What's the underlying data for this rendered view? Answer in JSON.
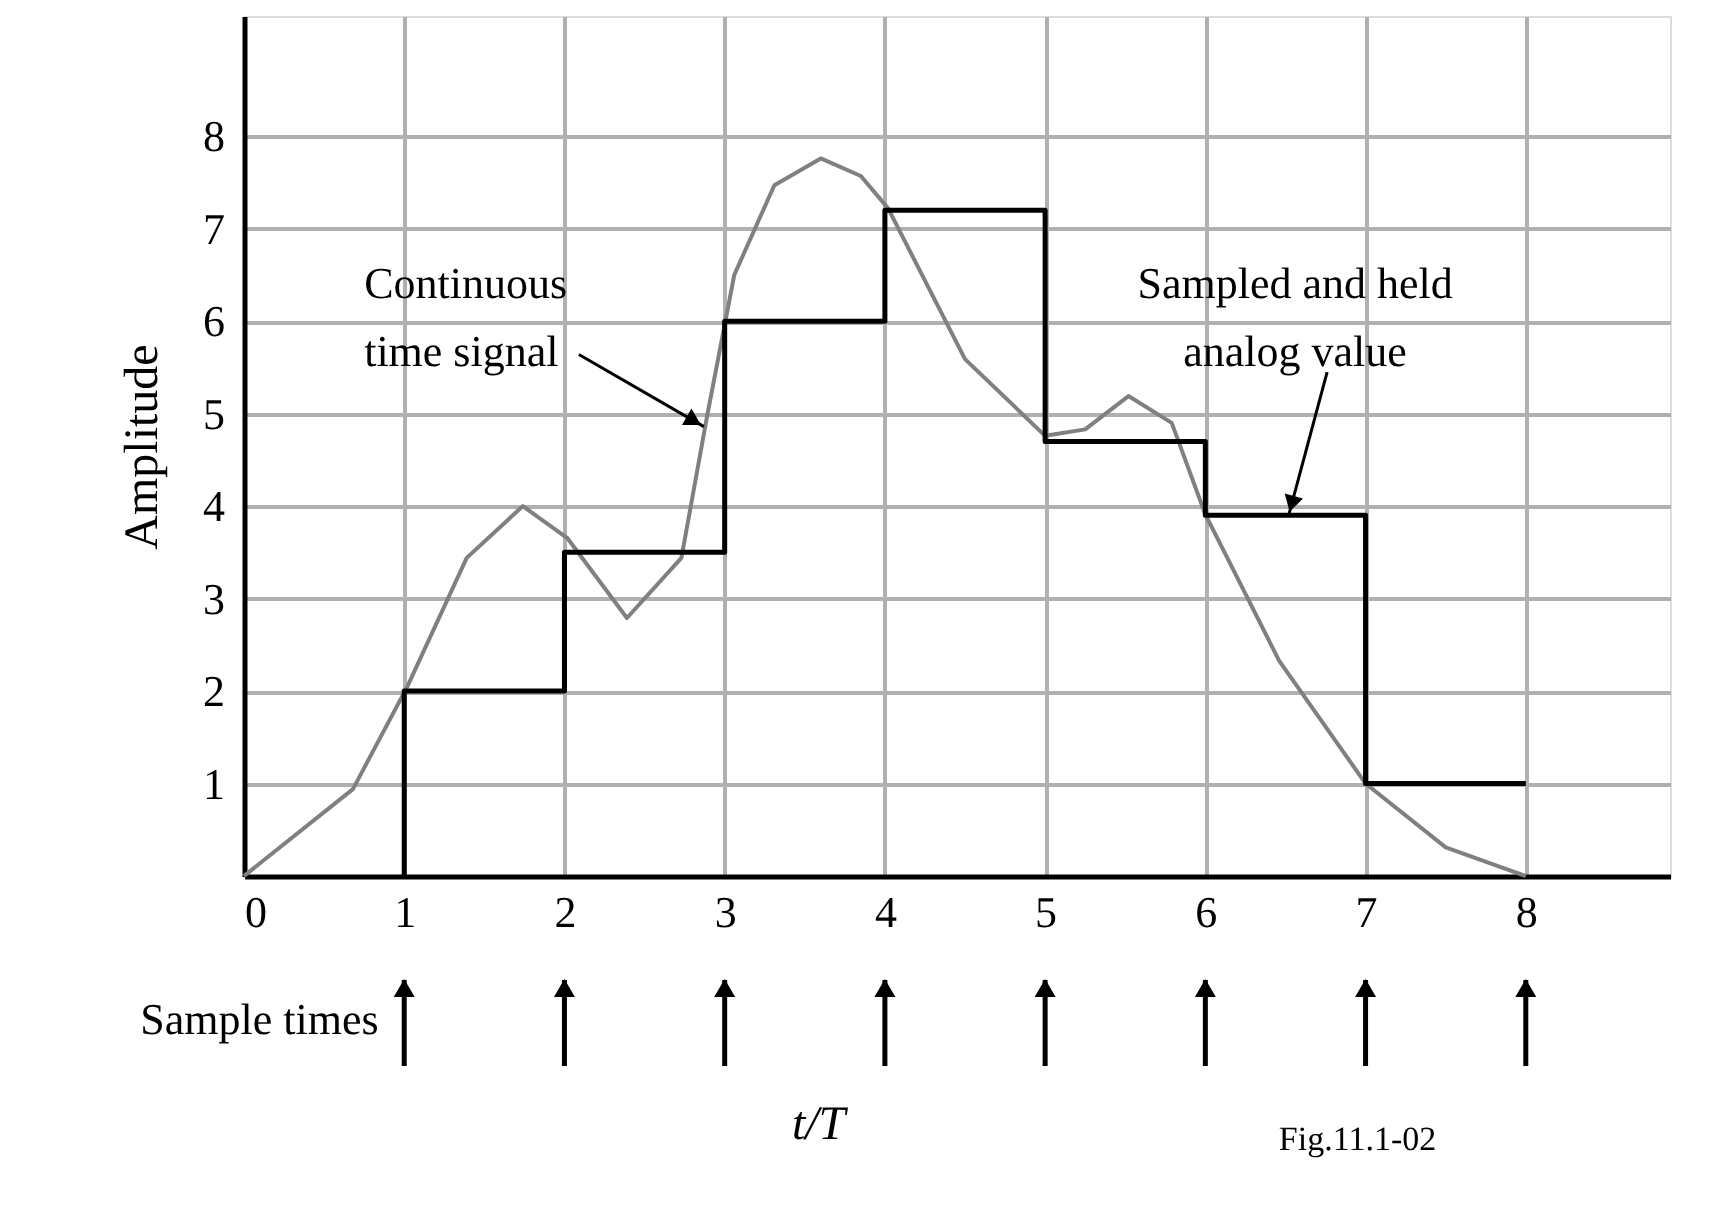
{
  "chart_data": {
    "type": "line",
    "xlabel": "t/T",
    "ylabel": "Amplitude",
    "xlim": [
      0,
      8.9
    ],
    "ylim": [
      0,
      9.3
    ],
    "xticks": [
      0,
      1,
      2,
      3,
      4,
      5,
      6,
      7,
      8
    ],
    "yticks": [
      1,
      2,
      3,
      4,
      5,
      6,
      7,
      8
    ],
    "grid": true,
    "series": [
      {
        "type": "line",
        "color": "#808080",
        "x": [
          0,
          0.68,
          1.02,
          1.39,
          1.74,
          2.02,
          2.39,
          2.73,
          2.89,
          3.06,
          3.31,
          3.6,
          3.85,
          4.02,
          4.5,
          5.0,
          5.25,
          5.52,
          5.79,
          6.0,
          6.46,
          7.0,
          7.5,
          8.0
        ],
        "values": [
          0,
          0.94,
          2.05,
          3.44,
          4.0,
          3.65,
          2.79,
          3.44,
          4.97,
          6.5,
          7.47,
          7.76,
          7.57,
          7.22,
          5.59,
          4.76,
          4.83,
          5.19,
          4.9,
          3.91,
          2.33,
          1.0,
          0.31,
          0
        ]
      },
      {
        "type": "step",
        "color": "#000000",
        "x": [
          1,
          1,
          2,
          3,
          4,
          5,
          6,
          7,
          8
        ],
        "values": [
          0,
          2,
          3.5,
          6,
          7.2,
          4.7,
          3.9,
          1,
          1
        ]
      }
    ],
    "annotations": [
      "Sample times",
      {
        "text": "Continuous\ntime signal",
        "x": 2.87,
        "y": 4.86
      },
      {
        "text": "Sampled and held\nanalog value",
        "x": 6.52,
        "y": 3.9
      },
      "Fig.11.1-02"
    ]
  }
}
